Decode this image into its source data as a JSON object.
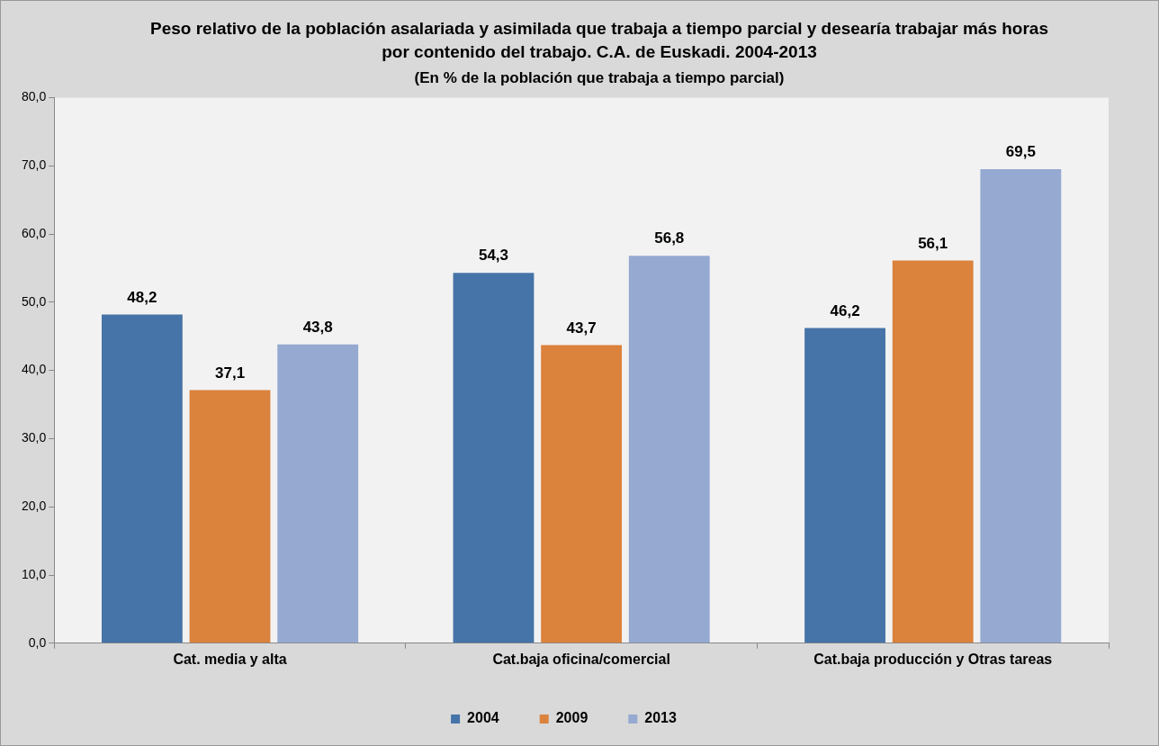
{
  "chart_data": {
    "type": "bar",
    "title": "Peso relativo de la población asalariada y asimilada que trabaja a tiempo parcial y desearía trabajar más horas por contenido del trabajo. C.A. de Euskadi. 2004-2013",
    "subtitle": "(En % de la población que trabaja a tiempo parcial)",
    "categories": [
      "Cat. media y alta",
      "Cat.baja oficina/comercial",
      "Cat.baja producción y Otras tareas"
    ],
    "series": [
      {
        "name": "2004",
        "color": "#4674a8",
        "values": [
          48.2,
          54.3,
          46.2
        ],
        "value_labels": [
          "48,2",
          "54,3",
          "46,2"
        ]
      },
      {
        "name": "2009",
        "color": "#db823d",
        "values": [
          37.1,
          43.7,
          56.1
        ],
        "value_labels": [
          "37,1",
          "43,7",
          "56,1"
        ]
      },
      {
        "name": "2013",
        "color": "#95a9d1",
        "values": [
          43.8,
          56.8,
          69.5
        ],
        "value_labels": [
          "43,8",
          "56,8",
          "69,5"
        ]
      }
    ],
    "ylim": [
      0,
      80
    ],
    "yticks": [
      {
        "value": 0,
        "label": "0,0"
      },
      {
        "value": 10,
        "label": "10,0"
      },
      {
        "value": 20,
        "label": "20,0"
      },
      {
        "value": 30,
        "label": "30,0"
      },
      {
        "value": 40,
        "label": "40,0"
      },
      {
        "value": 50,
        "label": "50,0"
      },
      {
        "value": 60,
        "label": "60,0"
      },
      {
        "value": 70,
        "label": "70,0"
      },
      {
        "value": 80,
        "label": "80,0"
      }
    ],
    "grid": false,
    "legend": "bottom"
  }
}
